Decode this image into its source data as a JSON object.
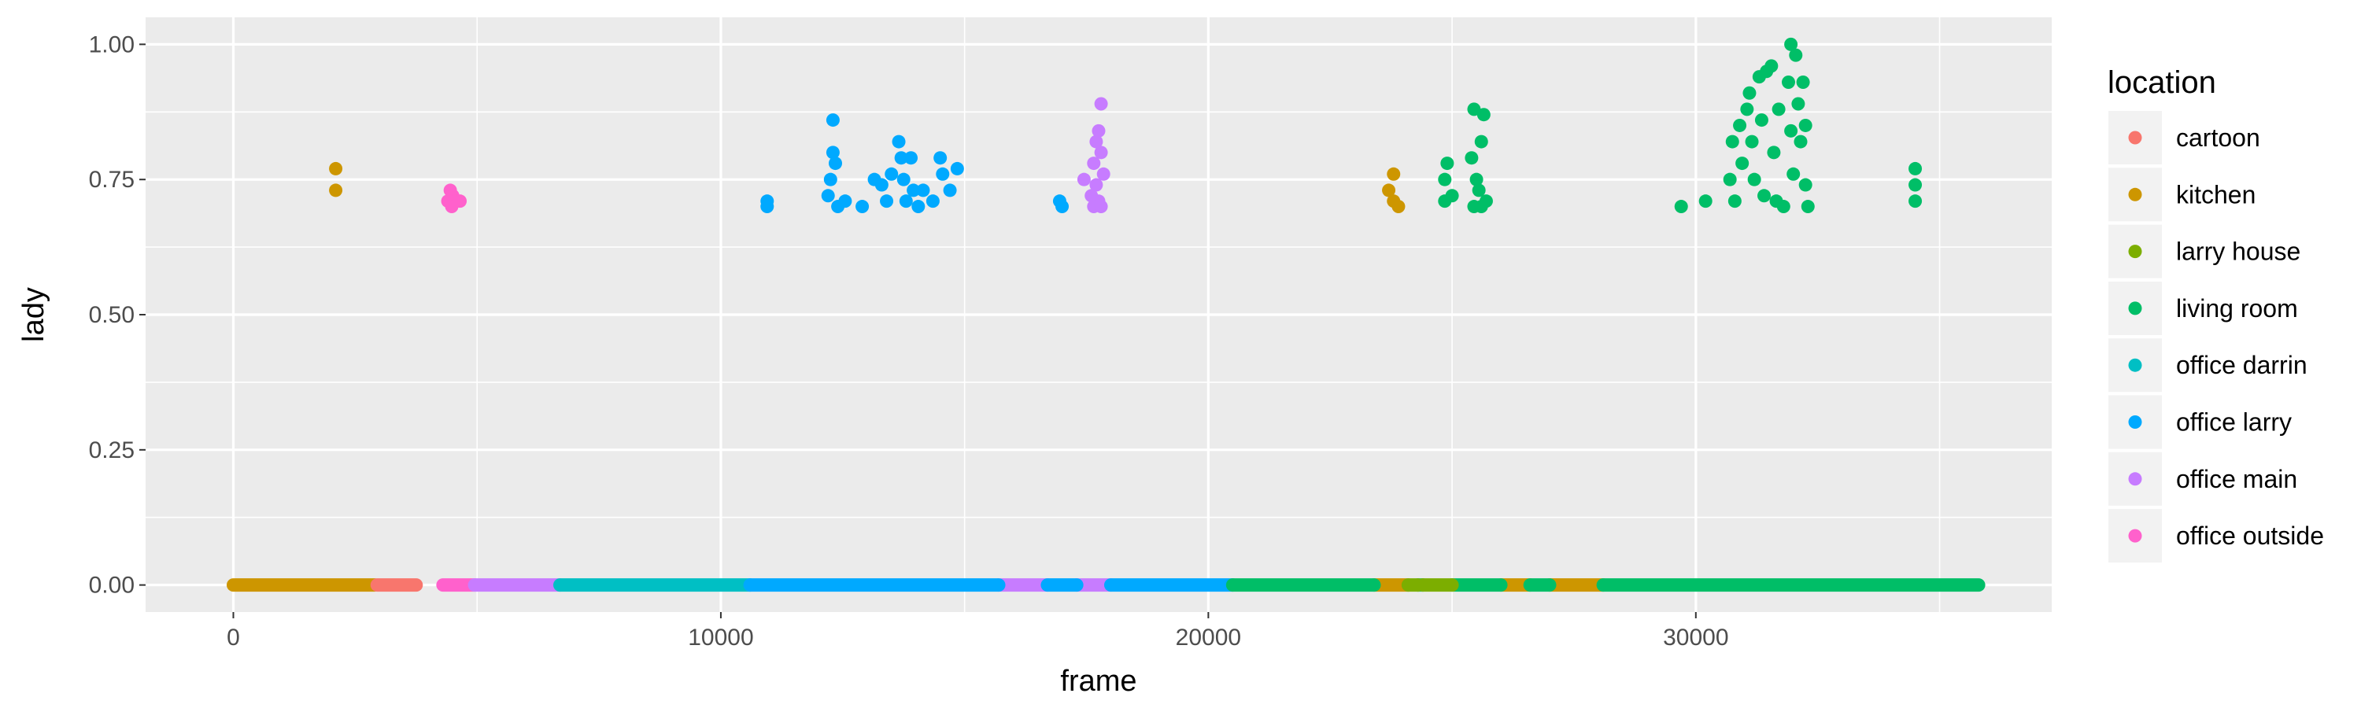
{
  "chart_data": {
    "type": "scatter",
    "title": "",
    "xlabel": "frame",
    "ylabel": "lady",
    "xlim": [
      -1800,
      37300
    ],
    "ylim": [
      -0.05,
      1.05
    ],
    "x_ticks": [
      0,
      10000,
      20000,
      30000
    ],
    "x_tick_labels": [
      "0",
      "10000",
      "20000",
      "30000"
    ],
    "y_ticks": [
      0,
      0.25,
      0.5,
      0.75,
      1.0
    ],
    "y_tick_labels": [
      "0.00",
      "0.25",
      "0.50",
      "0.75",
      "1.00"
    ],
    "grid": true,
    "legend": {
      "title": "location",
      "placement": "right",
      "entries": [
        {
          "name": "cartoon",
          "color": "#F8766D"
        },
        {
          "name": "kitchen",
          "color": "#CD9600"
        },
        {
          "name": "larry house",
          "color": "#7CAE00"
        },
        {
          "name": "living room",
          "color": "#00BE67"
        },
        {
          "name": "office darrin",
          "color": "#00BFC4"
        },
        {
          "name": "office larry",
          "color": "#00A9FF"
        },
        {
          "name": "office main",
          "color": "#C77CFF"
        },
        {
          "name": "office outside",
          "color": "#FF61CC"
        }
      ]
    },
    "series": [
      {
        "name": "kitchen",
        "zero_segments": [
          [
            0,
            2900
          ],
          [
            23400,
            24100
          ],
          [
            26000,
            26600
          ],
          [
            27000,
            28100
          ]
        ],
        "points": [
          [
            2100,
            0.77
          ],
          [
            2100,
            0.73
          ],
          [
            23700,
            0.73
          ],
          [
            23800,
            0.76
          ],
          [
            23800,
            0.71
          ],
          [
            23900,
            0.7
          ]
        ]
      },
      {
        "name": "cartoon",
        "zero_segments": [
          [
            2950,
            3750
          ]
        ],
        "points": []
      },
      {
        "name": "office outside",
        "zero_segments": [
          [
            4300,
            4950
          ]
        ],
        "points": [
          [
            4400,
            0.71
          ],
          [
            4450,
            0.73
          ],
          [
            4500,
            0.72
          ],
          [
            4550,
            0.71
          ],
          [
            4650,
            0.71
          ],
          [
            4480,
            0.7
          ]
        ]
      },
      {
        "name": "office main",
        "zero_segments": [
          [
            4950,
            6700
          ],
          [
            15700,
            16700
          ],
          [
            17300,
            18000
          ]
        ],
        "points": [
          [
            17450,
            0.75
          ],
          [
            17600,
            0.72
          ],
          [
            17650,
            0.78
          ],
          [
            17700,
            0.82
          ],
          [
            17700,
            0.74
          ],
          [
            17750,
            0.84
          ],
          [
            17800,
            0.89
          ],
          [
            17800,
            0.8
          ],
          [
            17850,
            0.76
          ],
          [
            17750,
            0.71
          ],
          [
            17650,
            0.7
          ],
          [
            17800,
            0.7
          ]
        ]
      },
      {
        "name": "office darrin",
        "zero_segments": [
          [
            6700,
            10600
          ]
        ],
        "points": []
      },
      {
        "name": "office larry",
        "zero_segments": [
          [
            10600,
            15700
          ],
          [
            16700,
            17300
          ],
          [
            18000,
            20500
          ]
        ],
        "points": [
          [
            10950,
            0.71
          ],
          [
            10950,
            0.7
          ],
          [
            12200,
            0.72
          ],
          [
            12250,
            0.75
          ],
          [
            12300,
            0.8
          ],
          [
            12300,
            0.86
          ],
          [
            12350,
            0.78
          ],
          [
            12400,
            0.7
          ],
          [
            12550,
            0.71
          ],
          [
            12900,
            0.7
          ],
          [
            13150,
            0.75
          ],
          [
            13300,
            0.74
          ],
          [
            13400,
            0.71
          ],
          [
            13500,
            0.76
          ],
          [
            13650,
            0.82
          ],
          [
            13700,
            0.79
          ],
          [
            13750,
            0.75
          ],
          [
            13800,
            0.71
          ],
          [
            13900,
            0.79
          ],
          [
            13950,
            0.73
          ],
          [
            14050,
            0.7
          ],
          [
            14150,
            0.73
          ],
          [
            14350,
            0.71
          ],
          [
            14500,
            0.79
          ],
          [
            14550,
            0.76
          ],
          [
            14700,
            0.73
          ],
          [
            14850,
            0.77
          ],
          [
            16950,
            0.71
          ],
          [
            17000,
            0.7
          ]
        ]
      },
      {
        "name": "living room",
        "zero_segments": [
          [
            20500,
            23400
          ],
          [
            24300,
            24400
          ],
          [
            25000,
            26000
          ],
          [
            26600,
            27000
          ],
          [
            28100,
            35800
          ]
        ],
        "points": [
          [
            24850,
            0.71
          ],
          [
            24850,
            0.75
          ],
          [
            24900,
            0.78
          ],
          [
            25000,
            0.72
          ],
          [
            25400,
            0.79
          ],
          [
            25450,
            0.88
          ],
          [
            25500,
            0.75
          ],
          [
            25550,
            0.73
          ],
          [
            25600,
            0.82
          ],
          [
            25650,
            0.87
          ],
          [
            25700,
            0.71
          ],
          [
            25450,
            0.7
          ],
          [
            25600,
            0.7
          ],
          [
            29700,
            0.7
          ],
          [
            30200,
            0.71
          ],
          [
            30700,
            0.75
          ],
          [
            30750,
            0.82
          ],
          [
            30800,
            0.71
          ],
          [
            30900,
            0.85
          ],
          [
            30950,
            0.78
          ],
          [
            31050,
            0.88
          ],
          [
            31100,
            0.91
          ],
          [
            31150,
            0.82
          ],
          [
            31200,
            0.75
          ],
          [
            31300,
            0.94
          ],
          [
            31350,
            0.86
          ],
          [
            31400,
            0.72
          ],
          [
            31450,
            0.95
          ],
          [
            31550,
            0.96
          ],
          [
            31600,
            0.8
          ],
          [
            31650,
            0.71
          ],
          [
            31700,
            0.88
          ],
          [
            31800,
            0.7
          ],
          [
            31900,
            0.93
          ],
          [
            31950,
            1.0
          ],
          [
            31950,
            0.84
          ],
          [
            32000,
            0.76
          ],
          [
            32050,
            0.98
          ],
          [
            32100,
            0.89
          ],
          [
            32150,
            0.82
          ],
          [
            32200,
            0.93
          ],
          [
            32250,
            0.74
          ],
          [
            32300,
            0.7
          ],
          [
            32250,
            0.85
          ],
          [
            34500,
            0.77
          ],
          [
            34500,
            0.74
          ],
          [
            34500,
            0.71
          ]
        ]
      },
      {
        "name": "larry house",
        "zero_segments": [
          [
            24100,
            24300
          ],
          [
            24400,
            25000
          ]
        ],
        "points": []
      }
    ]
  }
}
